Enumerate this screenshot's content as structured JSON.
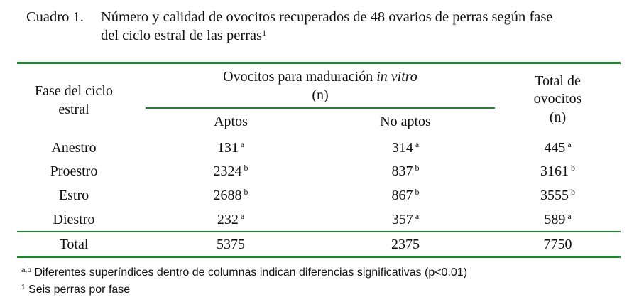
{
  "caption": {
    "label": "Cuadro 1.",
    "line1": "Número y calidad de ovocitos recuperados de 48 ovarios de perras según fase",
    "line2": "del ciclo estral de las perras",
    "footnote_mark": "1"
  },
  "header": {
    "col1_line1": "Fase del ciclo",
    "col1_line2": "estral",
    "group_prefix": "Ovocitos para maduración ",
    "group_italic": "in vitro",
    "group_unit": "(n)",
    "sub_aptos": "Aptos",
    "sub_no_aptos": "No aptos",
    "total_line1": "Total de",
    "total_line2": "ovocitos",
    "total_line3": "(n)"
  },
  "rows": [
    {
      "fase": "Anestro",
      "aptos": "131",
      "aptos_sup": "a",
      "no_aptos": "314",
      "no_aptos_sup": "a",
      "total": "445",
      "total_sup": "a"
    },
    {
      "fase": "Proestro",
      "aptos": "2324",
      "aptos_sup": "b",
      "no_aptos": "837",
      "no_aptos_sup": "b",
      "total": "3161",
      "total_sup": "b"
    },
    {
      "fase": "Estro",
      "aptos": "2688",
      "aptos_sup": "b",
      "no_aptos": "867",
      "no_aptos_sup": "b",
      "total": "3555",
      "total_sup": "b"
    },
    {
      "fase": "Diestro",
      "aptos": "232",
      "aptos_sup": "a",
      "no_aptos": "357",
      "no_aptos_sup": "a",
      "total": "589",
      "total_sup": "a"
    }
  ],
  "total_row": {
    "label": "Total",
    "aptos": "5375",
    "no_aptos": "2375",
    "total": "7750"
  },
  "notes": {
    "note1_mark": "a,b",
    "note1_text": "Diferentes superíndices dentro de columnas indican diferencias significativas (p<0.01)",
    "note2_mark": "1",
    "note2_text": "Seis perras por fase"
  },
  "colors": {
    "rule": "#1a8a2a"
  }
}
